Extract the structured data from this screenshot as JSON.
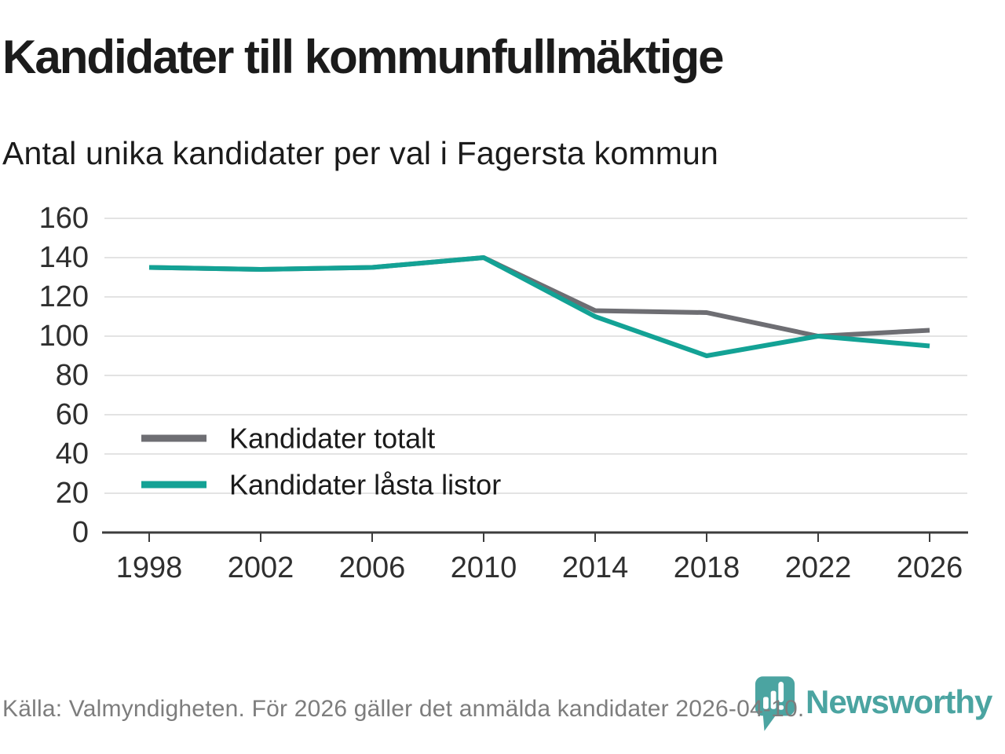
{
  "title": "Kandidater till kommunfullmäktige",
  "subtitle": "Antal unika kandidater per val i Fagersta kommun",
  "footer": {
    "source_text": "Källa: Valmyndigheten. För 2026 gäller det anmälda kandidater 2026-04-10.",
    "logo_text": "Newsworthy"
  },
  "colors": {
    "total_line": "#6e6e73",
    "locked_line": "#13a295",
    "grid": "#e3e3e3",
    "axis": "#3c3c3c",
    "heading_text": "#1b1b1b",
    "tick_text": "#2f2f2f",
    "footer_text": "#7d7d7d",
    "logo_teal": "#4ba4a1"
  },
  "chart_data": {
    "type": "line",
    "title": "Kandidater till kommunfullmäktige",
    "subtitle": "Antal unika kandidater per val i Fagersta kommun",
    "categories": [
      1998,
      2002,
      2006,
      2010,
      2014,
      2018,
      2022,
      2026
    ],
    "series": [
      {
        "name": "Kandidater totalt",
        "color": "#6e6e73",
        "values": [
          135,
          134,
          135,
          140,
          113,
          112,
          100,
          103
        ]
      },
      {
        "name": "Kandidater låsta listor",
        "color": "#13a295",
        "values": [
          135,
          134,
          135,
          140,
          110,
          90,
          100,
          95
        ]
      }
    ],
    "ylim": [
      0,
      160
    ],
    "y_ticks": [
      0,
      20,
      40,
      60,
      80,
      100,
      120,
      140,
      160
    ],
    "grid": "horizontal",
    "legend_position": "inside-left-bottom",
    "note": "Teal series drawn on top; series overlap 1998–2010"
  }
}
